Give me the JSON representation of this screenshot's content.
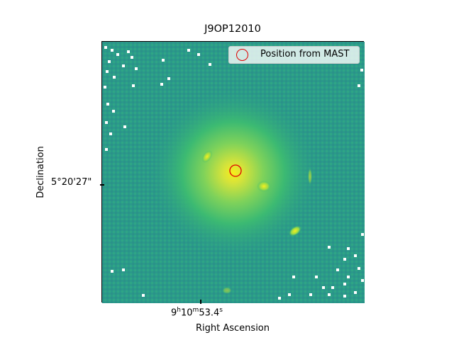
{
  "figure": {
    "title": "J9OP12010",
    "xlabel": "Right Ascension",
    "ylabel": "Declination",
    "x_tick_label": {
      "h": "9",
      "m": "10",
      "s": "53.4"
    },
    "y_tick_label": "5°20'27\"",
    "legend_label": "Position from MAST",
    "colors": {
      "background_field": "#2a9a8a",
      "galaxy_core": "#f4f020",
      "marker": "#e00000",
      "masked_pixels": "#ffffff"
    },
    "colormap": "viridis"
  }
}
